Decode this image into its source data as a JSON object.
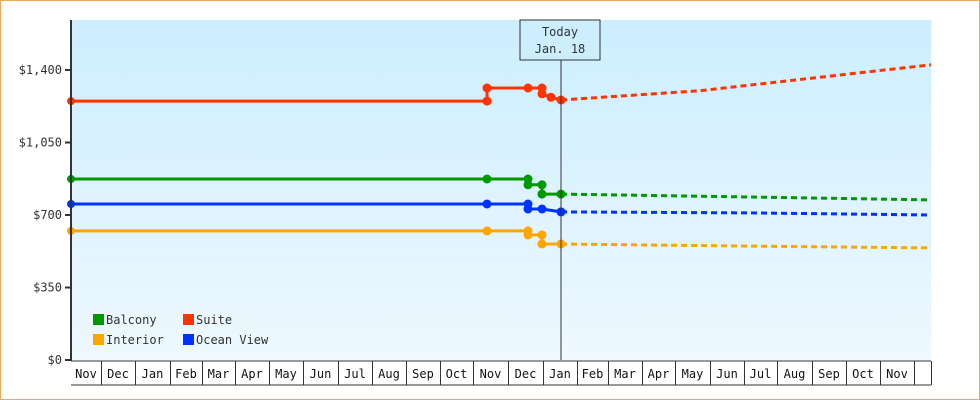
{
  "chart_data": {
    "type": "line",
    "title": "",
    "xlabel": "",
    "ylabel": "",
    "ylim": [
      0,
      1750
    ],
    "y_ticks": [
      {
        "value": 0,
        "label": "$0"
      },
      {
        "value": 350,
        "label": "$350"
      },
      {
        "value": 700,
        "label": "$700"
      },
      {
        "value": 1050,
        "label": "$1,050"
      },
      {
        "value": 1400,
        "label": "$1,400"
      }
    ],
    "x_months": [
      "Nov",
      "Dec",
      "Jan",
      "Feb",
      "Mar",
      "Apr",
      "May",
      "Jun",
      "Jul",
      "Aug",
      "Sep",
      "Oct",
      "Nov",
      "Dec",
      "Jan",
      "Feb",
      "Mar",
      "Apr",
      "May",
      "Jun",
      "Jul",
      "Aug",
      "Sep",
      "Oct",
      "Nov"
    ],
    "today_marker": {
      "line1": "Today",
      "line2": "Jan. 18"
    },
    "legend": [
      {
        "name": "Balcony",
        "color": "#009900"
      },
      {
        "name": "Suite",
        "color": "#ff3300"
      },
      {
        "name": "Interior",
        "color": "#ffa500"
      },
      {
        "name": "Ocean View",
        "color": "#0033ff"
      }
    ],
    "series": [
      {
        "name": "Suite",
        "color": "#ff3300",
        "historical": [
          [
            71,
            1250
          ],
          [
            487,
            1250
          ],
          [
            487,
            1313
          ],
          [
            528,
            1313
          ],
          [
            542,
            1313
          ],
          [
            542,
            1285
          ],
          [
            551,
            1268
          ],
          [
            561,
            1255
          ]
        ],
        "projected": [
          [
            561,
            1255
          ],
          [
            700,
            1300
          ],
          [
            931,
            1425
          ]
        ]
      },
      {
        "name": "Balcony",
        "color": "#009900",
        "historical": [
          [
            71,
            874
          ],
          [
            487,
            874
          ],
          [
            528,
            874
          ],
          [
            528,
            846
          ],
          [
            542,
            846
          ],
          [
            542,
            801
          ],
          [
            561,
            801
          ]
        ],
        "projected": [
          [
            561,
            801
          ],
          [
            750,
            787
          ],
          [
            931,
            773
          ]
        ]
      },
      {
        "name": "Ocean View",
        "color": "#0033ff",
        "historical": [
          [
            71,
            753
          ],
          [
            487,
            753
          ],
          [
            528,
            753
          ],
          [
            528,
            729
          ],
          [
            542,
            729
          ],
          [
            561,
            715
          ]
        ],
        "projected": [
          [
            561,
            715
          ],
          [
            750,
            710
          ],
          [
            931,
            700
          ]
        ]
      },
      {
        "name": "Interior",
        "color": "#ffa500",
        "historical": [
          [
            71,
            623
          ],
          [
            487,
            623
          ],
          [
            528,
            623
          ],
          [
            528,
            604
          ],
          [
            542,
            604
          ],
          [
            542,
            560
          ],
          [
            561,
            560
          ]
        ],
        "projected": [
          [
            561,
            560
          ],
          [
            750,
            550
          ],
          [
            931,
            541
          ]
        ]
      }
    ]
  },
  "colors": {
    "frame_border": "#e8a860",
    "plot_bg_top": "#cceeff",
    "plot_bg_bottom": "#eef8ff",
    "axis": "#333333"
  }
}
